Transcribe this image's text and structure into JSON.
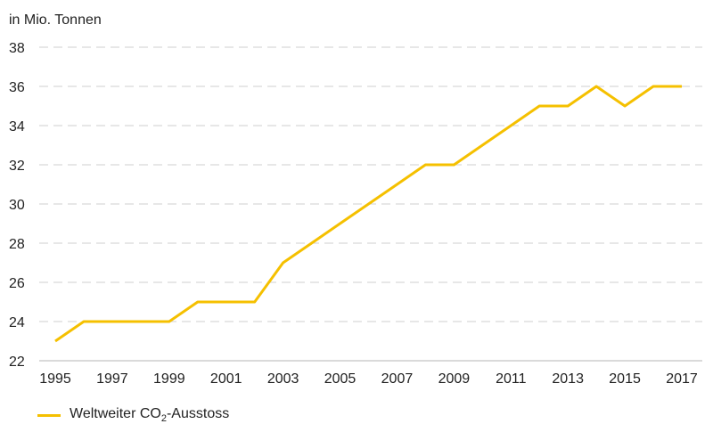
{
  "chart_data": {
    "type": "line",
    "unit_label": "in Mio. Tonnen",
    "x": [
      1995,
      1996,
      1997,
      1998,
      1999,
      2000,
      2001,
      2002,
      2003,
      2004,
      2005,
      2006,
      2007,
      2008,
      2009,
      2010,
      2011,
      2012,
      2013,
      2014,
      2015,
      2016,
      2017
    ],
    "x_ticks": [
      "1995",
      "1997",
      "1999",
      "2001",
      "2003",
      "2005",
      "2007",
      "2009",
      "2011",
      "2013",
      "2015",
      "2017"
    ],
    "y_ticks": [
      "22",
      "24",
      "26",
      "28",
      "30",
      "32",
      "34",
      "36",
      "38"
    ],
    "ylim": [
      22,
      38
    ],
    "xlim": [
      1995,
      2017
    ],
    "grid": true,
    "legend_position": "bottom-left",
    "series": [
      {
        "name_prefix": "Weltweiter CO",
        "name_subscript": "2",
        "name_suffix": "-Ausstoss",
        "color": "#f5c000",
        "values": [
          23,
          24,
          24,
          24,
          24,
          25,
          25,
          25,
          27,
          28,
          29,
          30,
          31,
          32,
          32,
          33,
          34,
          35,
          35,
          36,
          35,
          36,
          36
        ]
      }
    ]
  }
}
